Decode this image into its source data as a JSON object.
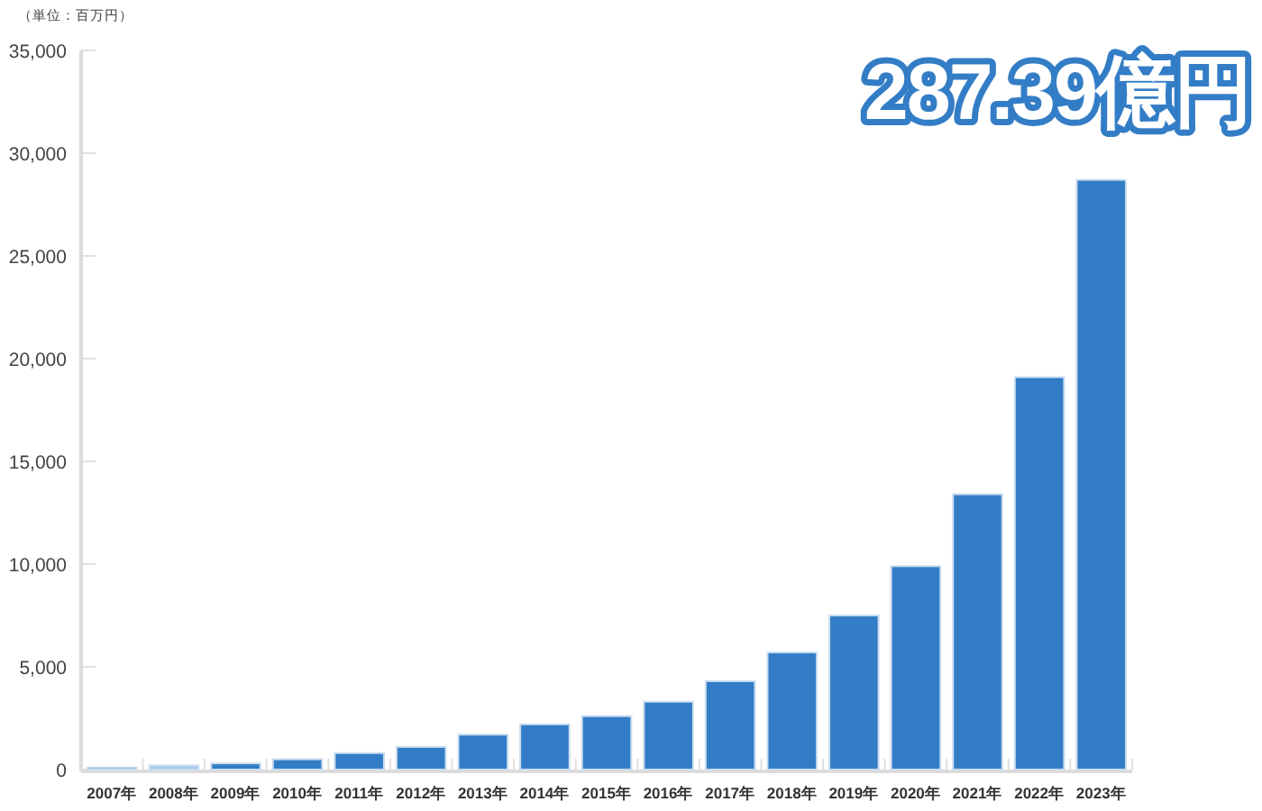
{
  "chart_data": {
    "type": "bar",
    "ylabel": "（単位：百万円）",
    "annotations": [
      "287.39億円"
    ],
    "categories": [
      "2007年",
      "2008年",
      "2009年",
      "2010年",
      "2011年",
      "2012年",
      "2013年",
      "2014年",
      "2015年",
      "2016年",
      "2017年",
      "2018年",
      "2019年",
      "2020年",
      "2021年",
      "2022年",
      "2023年"
    ],
    "values": [
      100,
      200,
      300,
      500,
      800,
      1100,
      1700,
      2200,
      2600,
      3300,
      4300,
      5700,
      7500,
      9900,
      13400,
      19100,
      28700
    ],
    "colors": [
      "#337dc6",
      "#a8c8ea",
      "#337dc6",
      "#337dc6",
      "#337dc6",
      "#337dc6",
      "#337dc6",
      "#337dc6",
      "#337dc6",
      "#337dc6",
      "#337dc6",
      "#337dc6",
      "#337dc6",
      "#337dc6",
      "#337dc6",
      "#337dc6",
      "#337dc6"
    ],
    "ylim": [
      0,
      35000
    ],
    "yticks": [
      {
        "value": 0,
        "label": "0"
      },
      {
        "value": 5000,
        "label": "5,000"
      },
      {
        "value": 10000,
        "label": "10,000"
      },
      {
        "value": 15000,
        "label": "15,000"
      },
      {
        "value": 20000,
        "label": "20,000"
      },
      {
        "value": 25000,
        "label": "25,000"
      },
      {
        "value": 30000,
        "label": "30,000"
      },
      {
        "value": 35000,
        "label": "35,000"
      }
    ],
    "grid": false
  }
}
